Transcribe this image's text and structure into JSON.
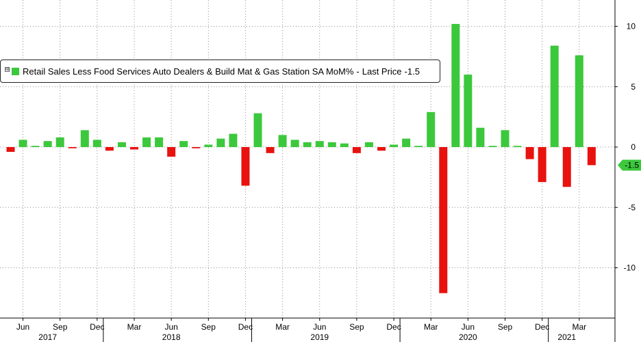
{
  "colors": {
    "positive": "#3cc83c",
    "negative": "#e8120f",
    "marker": "#3cc83c",
    "grid": "#8c8c8c"
  },
  "legend": {
    "toggle": "⊞",
    "series_name": "Retail Sales Less Food Services Auto Dealers & Build Mat & Gas Station SA MoM%",
    "separator": "-",
    "last_price_label": "Last Price",
    "last_price_value": "-1.5"
  },
  "last_value_marker": {
    "label": "-1.5"
  },
  "chart_data": {
    "type": "bar",
    "series": [
      {
        "name": "Retail Sales Less Food Services Auto Dealers & Build Mat & Gas Station SA MoM%",
        "dates": [
          "2017-05",
          "2017-06",
          "2017-07",
          "2017-08",
          "2017-09",
          "2017-10",
          "2017-11",
          "2017-12",
          "2018-01",
          "2018-02",
          "2018-03",
          "2018-04",
          "2018-05",
          "2018-06",
          "2018-07",
          "2018-08",
          "2018-09",
          "2018-10",
          "2018-11",
          "2018-12",
          "2019-01",
          "2019-02",
          "2019-03",
          "2019-04",
          "2019-05",
          "2019-06",
          "2019-07",
          "2019-08",
          "2019-09",
          "2019-10",
          "2019-11",
          "2019-12",
          "2020-01",
          "2020-02",
          "2020-03",
          "2020-04",
          "2020-05",
          "2020-06",
          "2020-07",
          "2020-08",
          "2020-09",
          "2020-10",
          "2020-11",
          "2020-12",
          "2021-01",
          "2021-02",
          "2021-03",
          "2021-04"
        ],
        "values": [
          -0.4,
          0.6,
          0.1,
          0.5,
          0.8,
          -0.1,
          1.4,
          0.6,
          -0.3,
          0.4,
          -0.2,
          0.8,
          0.8,
          -0.8,
          0.5,
          -0.1,
          0.2,
          0.7,
          1.1,
          -3.2,
          2.8,
          -0.5,
          1.0,
          0.6,
          0.4,
          0.5,
          0.4,
          0.3,
          -0.5,
          0.4,
          -0.3,
          0.2,
          0.7,
          0.1,
          2.9,
          -12.1,
          10.2,
          6.0,
          1.6,
          0.1,
          1.4,
          0.1,
          -1.0,
          -2.9,
          8.4,
          -3.3,
          7.6,
          -1.5
        ]
      }
    ],
    "x_ticks": [
      {
        "label": "Jun",
        "date": "2017-06"
      },
      {
        "label": "Sep",
        "date": "2017-09"
      },
      {
        "label": "Dec",
        "date": "2017-12"
      },
      {
        "label": "Mar",
        "date": "2018-03"
      },
      {
        "label": "Jun",
        "date": "2018-06"
      },
      {
        "label": "Sep",
        "date": "2018-09"
      },
      {
        "label": "Dec",
        "date": "2018-12"
      },
      {
        "label": "Mar",
        "date": "2019-03"
      },
      {
        "label": "Jun",
        "date": "2019-06"
      },
      {
        "label": "Sep",
        "date": "2019-09"
      },
      {
        "label": "Dec",
        "date": "2019-12"
      },
      {
        "label": "Mar",
        "date": "2020-03"
      },
      {
        "label": "Jun",
        "date": "2020-06"
      },
      {
        "label": "Sep",
        "date": "2020-09"
      },
      {
        "label": "Dec",
        "date": "2020-12"
      },
      {
        "label": "Mar",
        "date": "2021-03"
      }
    ],
    "x_years": [
      {
        "label": "2017",
        "center": "2017-08"
      },
      {
        "label": "2018",
        "center": "2018-06"
      },
      {
        "label": "2019",
        "center": "2019-06"
      },
      {
        "label": "2020",
        "center": "2020-06"
      },
      {
        "label": "2021",
        "center": "2021-02"
      }
    ],
    "year_boundaries": [
      "2018-01",
      "2019-01",
      "2020-01",
      "2021-01"
    ],
    "y_ticks": [
      10,
      5,
      0,
      -5,
      -10
    ],
    "y_tick_labels": [
      "10",
      "5",
      "0",
      "-5",
      "-10"
    ],
    "ylim": [
      -13.6,
      11.9
    ],
    "y_axis_side": "right",
    "grid": true
  }
}
